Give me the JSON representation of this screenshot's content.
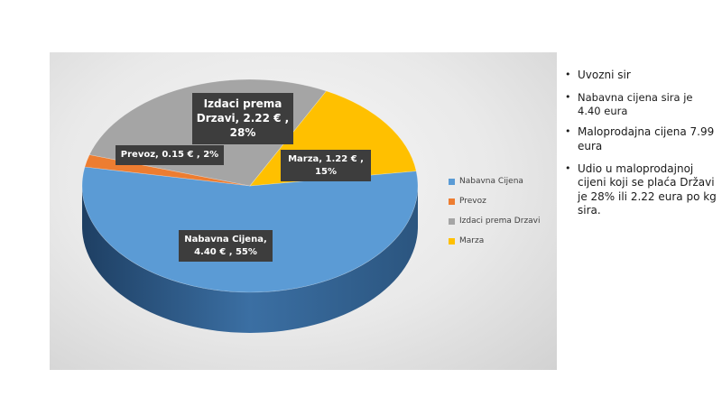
{
  "chart_data": {
    "type": "pie",
    "title": "",
    "categories": [
      "Nabavna Cijena",
      "Prevoz",
      "Izdaci prema Drzavi",
      "Marza"
    ],
    "values": [
      4.4,
      0.15,
      2.22,
      1.22
    ],
    "percents": [
      55,
      2,
      28,
      15
    ],
    "colors": [
      "#5b9bd5",
      "#ed7d31",
      "#a5a5a5",
      "#ffc000"
    ],
    "legend_position": "right",
    "data_labels": [
      "Nabavna Cijena, 4.40 € , 55%",
      "Prevoz, 0.15 € , 2%",
      "Izdaci prema Drzavi, 2.22 € , 28%",
      "Marza, 1.22 € , 15%"
    ]
  },
  "labels": {
    "nabavna_line1": "Nabavna Cijena,",
    "nabavna_line2": "4.40 € , 55%",
    "prevoz": "Prevoz, 0.15 € , 2%",
    "izdaci_line1": "Izdaci prema",
    "izdaci_line2": "Drzavi, 2.22 € ,",
    "izdaci_line3": "28%",
    "marza_line1": "Marza, 1.22 € ,",
    "marza_line2": "15%"
  },
  "legend": [
    {
      "label": "Nabavna Cijena",
      "color": "#5b9bd5"
    },
    {
      "label": "Prevoz",
      "color": "#ed7d31"
    },
    {
      "label": "Izdaci prema Drzavi",
      "color": "#a5a5a5"
    },
    {
      "label": "Marza",
      "color": "#ffc000"
    }
  ],
  "bullets": [
    "Uvozni sir",
    "Nabavna cijena sira je 4.40 eura",
    "Maloprodajna cijena 7.99 eura",
    "Udio u maloprodajnoj cijeni koji se plaća Državi je 28% ili 2.22 eura po kg sira."
  ]
}
